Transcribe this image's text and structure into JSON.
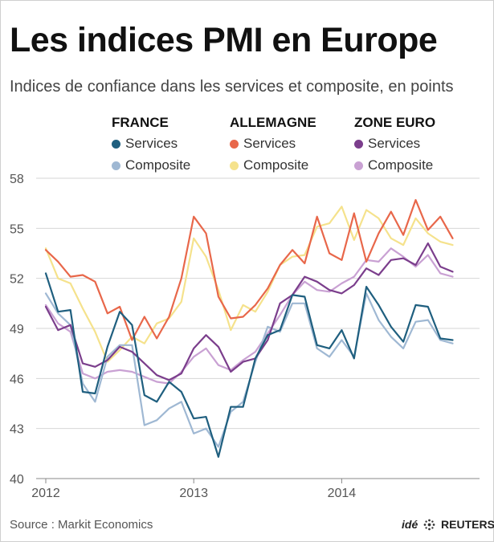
{
  "title": "Les indices PMI en Europe",
  "subtitle": "Indices de confiance dans les services et composite, en points",
  "source": "Source : Markit Economics",
  "brand": {
    "prefix": "idé",
    "name": "REUTERS",
    "icon": "reuters-dots-logo"
  },
  "legend": [
    {
      "heading": "FRANCE",
      "items": [
        {
          "label": "Services",
          "color": "#1f5f7f"
        },
        {
          "label": "Composite",
          "color": "#9fb8d3"
        }
      ]
    },
    {
      "heading": "ALLEMAGNE",
      "items": [
        {
          "label": "Services",
          "color": "#e8674a"
        },
        {
          "label": "Composite",
          "color": "#f5e28c"
        }
      ]
    },
    {
      "heading": "ZONE EURO",
      "items": [
        {
          "label": "Services",
          "color": "#7b3e8c"
        },
        {
          "label": "Composite",
          "color": "#c9a1d3"
        }
      ]
    }
  ],
  "chart_data": {
    "type": "line",
    "ylim": [
      40,
      58
    ],
    "yticks": [
      "40",
      "43",
      "46",
      "49",
      "52",
      "55",
      "58"
    ],
    "xtick_labels": [
      "2012",
      "2013",
      "2014"
    ],
    "grid": true,
    "x_start": "2012-01",
    "series": [
      {
        "country": "FRANCE",
        "name": "Services",
        "color": "#1f5f7f",
        "values": [
          52.3,
          50.0,
          50.1,
          45.2,
          45.1,
          47.9,
          50.0,
          49.2,
          45.0,
          44.6,
          45.8,
          45.2,
          43.6,
          43.7,
          41.3,
          44.3,
          44.3,
          47.2,
          48.6,
          48.9,
          51.0,
          50.9,
          48.0,
          47.8,
          48.9,
          47.2,
          51.5,
          50.4,
          49.1,
          48.2,
          50.4,
          50.3,
          48.4,
          48.3
        ],
        "width": 2.2
      },
      {
        "country": "FRANCE",
        "name": "Composite",
        "color": "#9fb8d3",
        "values": [
          51.1,
          49.9,
          49.2,
          45.7,
          44.6,
          47.3,
          48.0,
          48.0,
          43.2,
          43.5,
          44.2,
          44.6,
          42.7,
          43.0,
          41.9,
          44.0,
          44.6,
          47.0,
          49.1,
          48.8,
          50.5,
          50.5,
          47.8,
          47.3,
          48.3,
          47.3,
          51.1,
          49.5,
          48.5,
          47.8,
          49.4,
          49.5,
          48.3,
          48.1
        ],
        "width": 2.2
      },
      {
        "country": "ALLEMAGNE",
        "name": "Services",
        "color": "#e8674a",
        "values": [
          53.7,
          53.0,
          52.1,
          52.2,
          51.8,
          49.9,
          50.3,
          48.3,
          49.7,
          48.4,
          49.7,
          52.0,
          55.7,
          54.7,
          50.9,
          49.6,
          49.7,
          50.4,
          51.4,
          52.8,
          53.7,
          52.9,
          55.7,
          53.5,
          53.1,
          55.9,
          53.0,
          54.7,
          56.0,
          54.6,
          56.7,
          54.9,
          55.7,
          54.4
        ],
        "width": 2.2
      },
      {
        "country": "ALLEMAGNE",
        "name": "Composite",
        "color": "#f5e28c",
        "values": [
          53.8,
          52.0,
          51.7,
          50.2,
          48.8,
          47.0,
          47.7,
          48.5,
          48.1,
          49.3,
          49.6,
          50.6,
          54.4,
          53.3,
          51.3,
          48.9,
          50.4,
          50.0,
          51.2,
          52.8,
          53.3,
          53.4,
          55.1,
          55.3,
          56.3,
          54.3,
          56.1,
          55.6,
          54.4,
          54.0,
          55.6,
          54.7,
          54.2,
          54.0
        ],
        "width": 2.2
      },
      {
        "country": "ZONE EURO",
        "name": "Services",
        "color": "#7b3e8c",
        "values": [
          50.3,
          48.9,
          49.2,
          46.9,
          46.7,
          47.1,
          47.9,
          47.6,
          46.9,
          46.2,
          45.9,
          46.3,
          47.8,
          48.6,
          47.9,
          46.4,
          47.0,
          47.2,
          48.3,
          50.5,
          51.0,
          52.1,
          51.8,
          51.3,
          51.1,
          51.6,
          52.6,
          52.2,
          53.1,
          53.2,
          52.8,
          54.1,
          52.7,
          52.4
        ],
        "width": 2.2
      },
      {
        "country": "ZONE EURO",
        "name": "Composite",
        "color": "#c9a1d3",
        "values": [
          50.4,
          49.3,
          48.8,
          46.3,
          46.0,
          46.4,
          46.5,
          46.4,
          46.1,
          45.8,
          45.7,
          46.4,
          47.3,
          47.8,
          46.8,
          46.5,
          47.1,
          47.6,
          48.7,
          49.8,
          51.0,
          51.8,
          51.3,
          51.2,
          51.7,
          52.1,
          53.1,
          53.0,
          53.8,
          53.3,
          52.7,
          53.4,
          52.3,
          52.1
        ],
        "width": 2.2
      }
    ]
  }
}
